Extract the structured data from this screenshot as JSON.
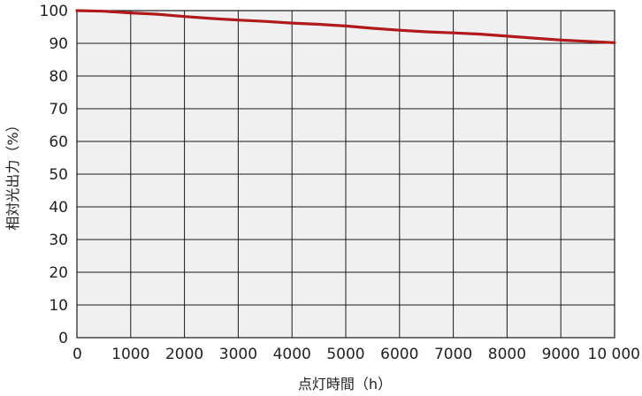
{
  "chart_data": {
    "type": "line",
    "xlabel": "点灯時間（h）",
    "ylabel": "相対光出力（%）",
    "xlim": [
      0,
      10000
    ],
    "ylim": [
      0,
      100
    ],
    "x_ticks": [
      "0",
      "1000",
      "2000",
      "3000",
      "4000",
      "5000",
      "6000",
      "7000",
      "8000",
      "9000",
      "10 000"
    ],
    "y_ticks": [
      "0",
      "10",
      "20",
      "30",
      "40",
      "50",
      "60",
      "70",
      "80",
      "90",
      "100"
    ],
    "grid": true,
    "series": [
      {
        "x": [
          0,
          500,
          1000,
          1500,
          2000,
          2500,
          3000,
          3500,
          4000,
          4500,
          5000,
          5500,
          6000,
          6500,
          7000,
          7500,
          8000,
          8500,
          9000,
          9500,
          10000
        ],
        "y": [
          100,
          99.8,
          99.3,
          98.9,
          98.2,
          97.6,
          97.1,
          96.7,
          96.2,
          95.8,
          95.3,
          94.6,
          94.0,
          93.5,
          93.2,
          92.8,
          92.2,
          91.6,
          91.0,
          90.6,
          90.2
        ]
      }
    ],
    "colors": {
      "line": "#b01a1a",
      "plot_bg": "#f0f0f0",
      "grid": "#1a1a1a"
    }
  }
}
